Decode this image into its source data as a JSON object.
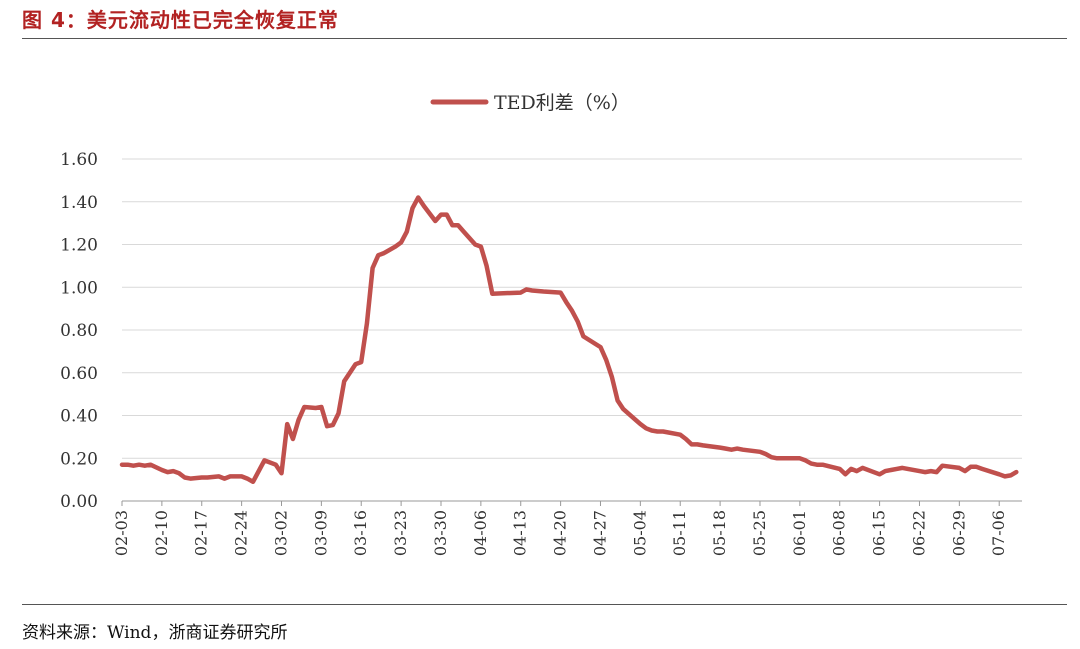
{
  "header": {
    "figure_title": "图 4：美元流动性已完全恢复正常"
  },
  "footer": {
    "source": "资料来源：Wind，浙商证券研究所"
  },
  "chart_data": {
    "type": "line",
    "title": "",
    "xlabel": "",
    "ylabel": "",
    "ylim": [
      0,
      1.6
    ],
    "y_ticks": [
      "0.00",
      "0.20",
      "0.40",
      "0.60",
      "0.80",
      "1.00",
      "1.20",
      "1.40",
      "1.60"
    ],
    "x_tick_labels": [
      "02-03",
      "02-10",
      "02-17",
      "02-24",
      "03-02",
      "03-09",
      "03-16",
      "03-23",
      "03-30",
      "04-06",
      "04-13",
      "04-20",
      "04-27",
      "05-04",
      "05-11",
      "05-18",
      "05-25",
      "06-01",
      "06-08",
      "06-15",
      "06-22",
      "06-29",
      "07-06"
    ],
    "grid": "horizontal",
    "legend_position": "top-center",
    "color": "#c0504d",
    "series": [
      {
        "name": "TED利差（%）",
        "points": [
          [
            "02-03",
            0.17
          ],
          [
            "02-04",
            0.17
          ],
          [
            "02-05",
            0.165
          ],
          [
            "02-06",
            0.17
          ],
          [
            "02-07",
            0.165
          ],
          [
            "02-08",
            0.17
          ],
          [
            "02-10",
            0.145
          ],
          [
            "02-11",
            0.135
          ],
          [
            "02-12",
            0.14
          ],
          [
            "02-13",
            0.13
          ],
          [
            "02-14",
            0.11
          ],
          [
            "02-15",
            0.105
          ],
          [
            "02-17",
            0.11
          ],
          [
            "02-18",
            0.11
          ],
          [
            "02-20",
            0.115
          ],
          [
            "02-21",
            0.105
          ],
          [
            "02-22",
            0.115
          ],
          [
            "02-23",
            0.115
          ],
          [
            "02-24",
            0.115
          ],
          [
            "02-25",
            0.105
          ],
          [
            "02-26",
            0.09
          ],
          [
            "02-28",
            0.19
          ],
          [
            "03-01",
            0.17
          ],
          [
            "03-02",
            0.13
          ],
          [
            "03-03",
            0.36
          ],
          [
            "03-04",
            0.29
          ],
          [
            "03-05",
            0.38
          ],
          [
            "03-06",
            0.44
          ],
          [
            "03-08",
            0.435
          ],
          [
            "03-09",
            0.44
          ],
          [
            "03-10",
            0.35
          ],
          [
            "03-11",
            0.355
          ],
          [
            "03-12",
            0.41
          ],
          [
            "03-13",
            0.56
          ],
          [
            "03-15",
            0.64
          ],
          [
            "03-16",
            0.65
          ],
          [
            "03-17",
            0.83
          ],
          [
            "03-18",
            1.09
          ],
          [
            "03-19",
            1.15
          ],
          [
            "03-20",
            1.16
          ],
          [
            "03-22",
            1.19
          ],
          [
            "03-23",
            1.21
          ],
          [
            "03-24",
            1.26
          ],
          [
            "03-25",
            1.37
          ],
          [
            "03-26",
            1.42
          ],
          [
            "03-27",
            1.38
          ],
          [
            "03-29",
            1.31
          ],
          [
            "03-30",
            1.34
          ],
          [
            "03-31",
            1.34
          ],
          [
            "04-01",
            1.29
          ],
          [
            "04-02",
            1.29
          ],
          [
            "04-03",
            1.26
          ],
          [
            "04-05",
            1.2
          ],
          [
            "04-06",
            1.19
          ],
          [
            "04-07",
            1.1
          ],
          [
            "04-08",
            0.97
          ],
          [
            "04-13",
            0.975
          ],
          [
            "04-14",
            0.99
          ],
          [
            "04-15",
            0.985
          ],
          [
            "04-17",
            0.98
          ],
          [
            "04-20",
            0.975
          ],
          [
            "04-21",
            0.93
          ],
          [
            "04-22",
            0.89
          ],
          [
            "04-23",
            0.84
          ],
          [
            "04-24",
            0.77
          ],
          [
            "04-27",
            0.72
          ],
          [
            "04-28",
            0.66
          ],
          [
            "04-29",
            0.58
          ],
          [
            "04-30",
            0.47
          ],
          [
            "05-01",
            0.43
          ],
          [
            "05-04",
            0.36
          ],
          [
            "05-05",
            0.34
          ],
          [
            "05-06",
            0.33
          ],
          [
            "05-07",
            0.325
          ],
          [
            "05-08",
            0.325
          ],
          [
            "05-11",
            0.31
          ],
          [
            "05-12",
            0.29
          ],
          [
            "05-13",
            0.265
          ],
          [
            "05-14",
            0.265
          ],
          [
            "05-15",
            0.26
          ],
          [
            "05-18",
            0.25
          ],
          [
            "05-19",
            0.245
          ],
          [
            "05-20",
            0.24
          ],
          [
            "05-21",
            0.245
          ],
          [
            "05-22",
            0.24
          ],
          [
            "05-25",
            0.23
          ],
          [
            "05-26",
            0.22
          ],
          [
            "05-27",
            0.205
          ],
          [
            "05-28",
            0.2
          ],
          [
            "05-29",
            0.2
          ],
          [
            "06-01",
            0.2
          ],
          [
            "06-02",
            0.19
          ],
          [
            "06-03",
            0.175
          ],
          [
            "06-04",
            0.17
          ],
          [
            "06-05",
            0.17
          ],
          [
            "06-08",
            0.15
          ],
          [
            "06-09",
            0.125
          ],
          [
            "06-10",
            0.15
          ],
          [
            "06-11",
            0.14
          ],
          [
            "06-12",
            0.155
          ],
          [
            "06-15",
            0.125
          ],
          [
            "06-16",
            0.14
          ],
          [
            "06-17",
            0.145
          ],
          [
            "06-18",
            0.15
          ],
          [
            "06-19",
            0.155
          ],
          [
            "06-22",
            0.14
          ],
          [
            "06-23",
            0.135
          ],
          [
            "06-24",
            0.14
          ],
          [
            "06-25",
            0.135
          ],
          [
            "06-26",
            0.165
          ],
          [
            "06-29",
            0.155
          ],
          [
            "06-30",
            0.14
          ],
          [
            "07-01",
            0.16
          ],
          [
            "07-02",
            0.16
          ],
          [
            "07-03",
            0.15
          ],
          [
            "07-06",
            0.125
          ],
          [
            "07-07",
            0.115
          ],
          [
            "07-08",
            0.12
          ],
          [
            "07-09",
            0.135
          ]
        ]
      }
    ]
  }
}
